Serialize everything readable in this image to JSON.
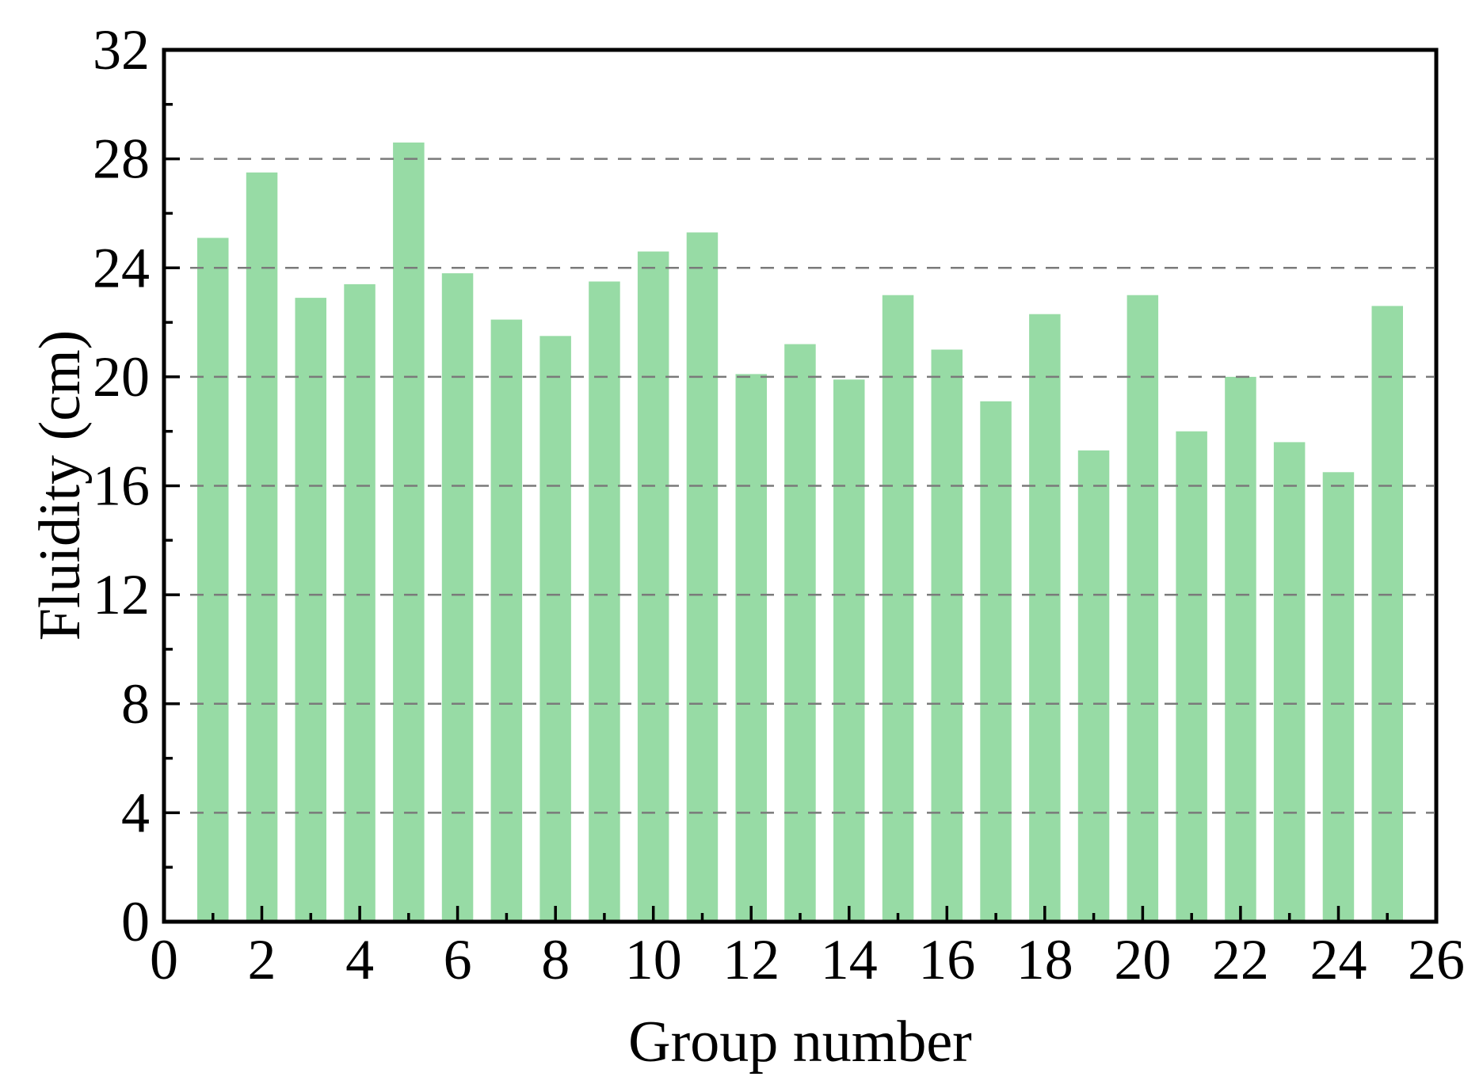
{
  "figure": {
    "background_color": "#ffffff"
  },
  "chart_data": {
    "type": "bar",
    "title": "",
    "xlabel": "Group number",
    "ylabel": "Fluidity (cm)",
    "categories": [
      1,
      2,
      3,
      4,
      5,
      6,
      7,
      8,
      9,
      10,
      11,
      12,
      13,
      14,
      15,
      16,
      17,
      18,
      19,
      20,
      21,
      22,
      23,
      24,
      25
    ],
    "values": [
      25.1,
      27.5,
      22.9,
      23.4,
      28.6,
      23.8,
      22.1,
      21.5,
      23.5,
      24.6,
      25.3,
      20.1,
      21.2,
      19.9,
      23.0,
      21.0,
      19.1,
      22.3,
      17.3,
      23.0,
      18.0,
      20.0,
      17.6,
      16.5,
      22.6
    ],
    "xlim": [
      0,
      26
    ],
    "ylim": [
      0,
      32
    ],
    "x_major_ticks": [
      0,
      2,
      4,
      6,
      8,
      10,
      12,
      14,
      16,
      18,
      20,
      22,
      24,
      26
    ],
    "x_minor_ticks": [
      1,
      3,
      5,
      7,
      9,
      11,
      13,
      15,
      17,
      19,
      21,
      23,
      25
    ],
    "y_major_ticks": [
      0,
      4,
      8,
      12,
      16,
      20,
      24,
      28,
      32
    ],
    "y_minor_ticks": [
      2,
      6,
      10,
      14,
      18,
      22,
      26,
      30
    ],
    "y_gridlines": [
      4,
      8,
      12,
      16,
      20,
      24,
      28
    ],
    "grid": "horizontal-dashed",
    "legend_position": "none",
    "bar_color": "#97dba5",
    "grid_color": "#7a7a7a",
    "axis_color": "#000000",
    "bar_width_fraction": 0.64
  }
}
